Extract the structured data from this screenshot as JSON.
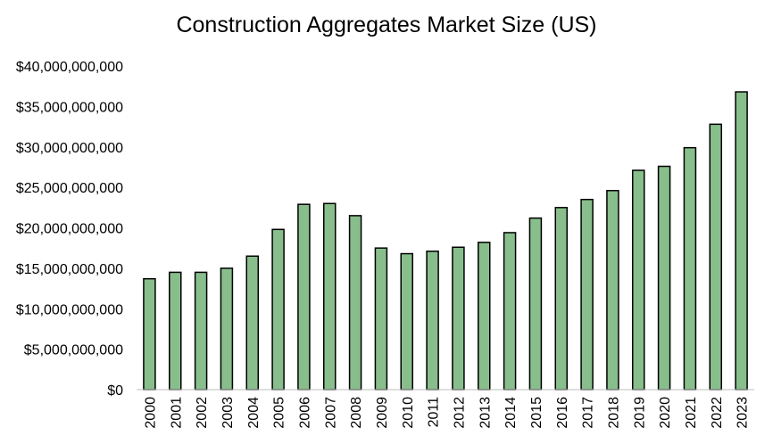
{
  "chart_data": {
    "type": "bar",
    "title": "Construction Aggregates Market Size (US)",
    "xlabel": "",
    "ylabel": "",
    "categories": [
      "2000",
      "2001",
      "2002",
      "2003",
      "2004",
      "2005",
      "2006",
      "2007",
      "2008",
      "2009",
      "2010",
      "2011",
      "2012",
      "2013",
      "2014",
      "2015",
      "2016",
      "2017",
      "2018",
      "2019",
      "2020",
      "2021",
      "2022",
      "2023"
    ],
    "values": [
      13700000000,
      14500000000,
      14500000000,
      15000000000,
      16500000000,
      19800000000,
      22900000000,
      23000000000,
      21500000000,
      17500000000,
      16800000000,
      17100000000,
      17600000000,
      18200000000,
      19400000000,
      21200000000,
      22500000000,
      23500000000,
      24600000000,
      27100000000,
      27600000000,
      29900000000,
      32800000000,
      36800000000
    ],
    "ylim": [
      0,
      40000000000
    ],
    "y_ticks": [
      0,
      5000000000,
      10000000000,
      15000000000,
      20000000000,
      25000000000,
      30000000000,
      35000000000,
      40000000000
    ],
    "y_tick_labels": [
      "$0",
      "$5,000,000,000",
      "$10,000,000,000",
      "$15,000,000,000",
      "$20,000,000,000",
      "$25,000,000,000",
      "$30,000,000,000",
      "$35,000,000,000",
      "$40,000,000,000"
    ],
    "grid": false,
    "legend": "none",
    "colors": {
      "bar_fill": "#88be8c",
      "bar_stroke": "#000000",
      "axis": "#bfbfbf",
      "text": "#000000"
    }
  }
}
